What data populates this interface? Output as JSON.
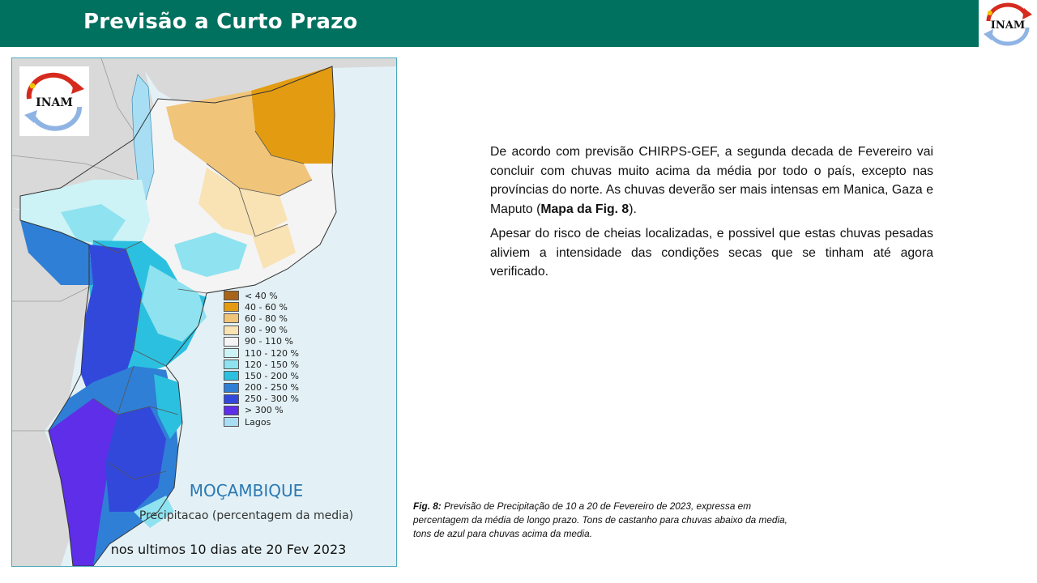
{
  "header": {
    "title": "Previsão a Curto Prazo",
    "logo_text": "INAM"
  },
  "map": {
    "logo_text": "INAM",
    "name": "MOÇAMBIQUE",
    "subtitle": "Precipitacao (percentagem da media)",
    "period": "nos ultimos 10 dias ate 20 Fev 2023",
    "legend": [
      {
        "label": "< 40 %",
        "color": "#a8651a"
      },
      {
        "label": "40 - 60 %",
        "color": "#e39c12"
      },
      {
        "label": "60 - 80 %",
        "color": "#f0c57a"
      },
      {
        "label": "80 - 90 %",
        "color": "#f9e2b4"
      },
      {
        "label": "90 - 110 %",
        "color": "#f4f4f4"
      },
      {
        "label": "110 - 120 %",
        "color": "#cdf3f6"
      },
      {
        "label": "120 - 150 %",
        "color": "#8fe2ef"
      },
      {
        "label": "150 - 200 %",
        "color": "#2cc0e0"
      },
      {
        "label": "200 - 250 %",
        "color": "#2f7fd6"
      },
      {
        "label": "250 - 300 %",
        "color": "#3248db"
      },
      {
        "label": "> 300 %",
        "color": "#5e2ee8"
      },
      {
        "label": "Lagos",
        "color": "#a8def4"
      }
    ]
  },
  "text": {
    "p1_before": "De acordo com previsão CHIRPS-GEF, a segunda decada de Fevereiro vai concluir com chuvas muito acima da média por todo o país, excepto nas províncias do norte. As chuvas deverão ser mais intensas em Manica, Gaza e Maputo (",
    "p1_bold": "Mapa da Fig. 8",
    "p1_after": ").",
    "p2": "Apesar do risco de cheias localizadas, e possivel que estas chuvas pesadas aliviem a intensidade das condições secas que se tinham até agora verificado."
  },
  "caption": {
    "label": "Fig. 8:",
    "text": " Previsão de Precipitação  de 10 a 20 de Fevereiro de 2023, expressa em percentagem da média de longo prazo. Tons de castanho para chuvas abaixo da media, tons de azul para chuvas acima da media."
  }
}
